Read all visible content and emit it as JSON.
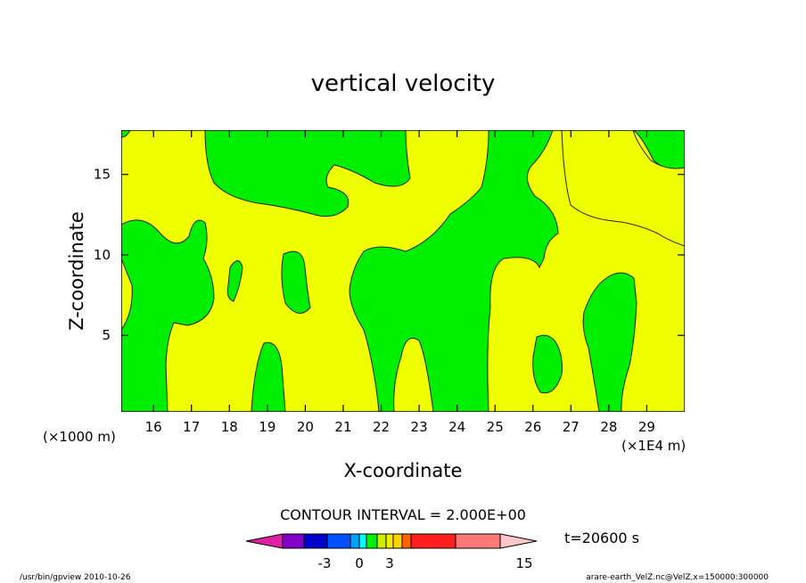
{
  "chart_data": {
    "type": "contour",
    "title": "vertical velocity",
    "xlabel": "X-coordinate",
    "ylabel": "Z-coordinate",
    "x_ticks": [
      "16",
      "17",
      "18",
      "19",
      "20",
      "21",
      "22",
      "23",
      "24",
      "25",
      "26",
      "27",
      "28",
      "29"
    ],
    "x_tick_values": [
      16,
      17,
      18,
      19,
      20,
      21,
      22,
      23,
      24,
      25,
      26,
      27,
      28,
      29
    ],
    "y_ticks": [
      "5",
      "10",
      "15"
    ],
    "y_tick_values": [
      5,
      10,
      15
    ],
    "xlim": [
      15.15,
      30.0
    ],
    "ylim": [
      0.25,
      17.75
    ],
    "x_unit_left": "(×1000 m)",
    "x_unit_right": "(×1E4 m)",
    "contour_interval_text": "CONTOUR INTERVAL = 2.000E+00",
    "time_label": "t=20600 s",
    "colorbar": {
      "colors": [
        "#e21ea5",
        "#8000c8",
        "#0000c8",
        "#0050ff",
        "#00a0ff",
        "#00ffff",
        "#00f000",
        "#c8f000",
        "#f0f000",
        "#ffd200",
        "#ff6400",
        "#ff1e1e",
        "#ff7878",
        "#ffc8c8"
      ],
      "tick_labels": [
        "-3",
        "0",
        "3",
        "15"
      ]
    },
    "field_colors": {
      "background": "#f0ff00",
      "region": "#00ee00"
    },
    "footer_left": "/usr/bin/gpview   2010-10-26",
    "footer_right": "arare-earth_VelZ.nc@VelZ,x=150000:300000"
  }
}
